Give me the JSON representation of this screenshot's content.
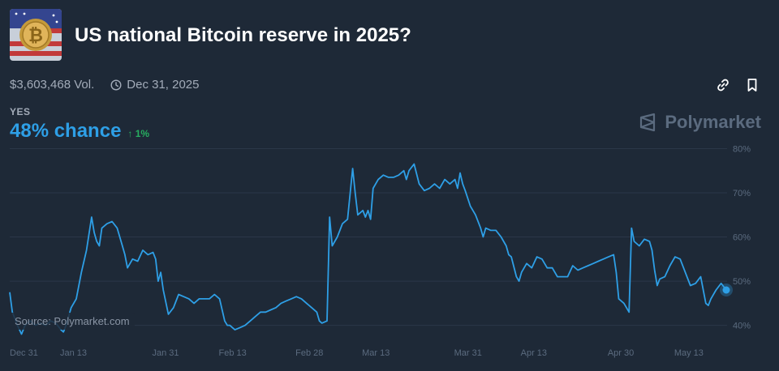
{
  "market": {
    "title": "US national Bitcoin reserve in 2025?",
    "volume": "$3,603,468 Vol.",
    "end_date": "Dec 31, 2025",
    "outcome": "YES",
    "chance": "48% chance",
    "delta": "↑ 1%",
    "brand": "Polymarket",
    "source": "Source: Polymarket.com",
    "thumbnail_icon": "bitcoin-flag-thumbnail",
    "colors": {
      "line": "#2e9fe6",
      "up": "#27ae60",
      "background": "#1e2937"
    }
  },
  "actions": [
    {
      "name": "link-icon"
    },
    {
      "name": "bookmark-icon"
    }
  ],
  "chart_data": {
    "type": "line",
    "x_tick_labels": [
      "Dec 31",
      "Jan 13",
      "Jan 31",
      "Feb 13",
      "Feb 28",
      "Mar 13",
      "Mar 31",
      "Apr 13",
      "Apr 30",
      "May 13"
    ],
    "y_tick_labels": [
      "40%",
      "50%",
      "60%",
      "70%",
      "80%"
    ],
    "ylim": [
      37,
      81
    ],
    "x_ticks_day": [
      0,
      13,
      31,
      44,
      59,
      72,
      90,
      103,
      120,
      133
    ],
    "xlim_day": [
      0,
      140
    ],
    "grid": true,
    "series": [
      {
        "points": [
          [
            0,
            47.5
          ],
          [
            0.5,
            43
          ],
          [
            1.5,
            40
          ],
          [
            2.3,
            38
          ],
          [
            3,
            40
          ],
          [
            4,
            41
          ],
          [
            5,
            40
          ],
          [
            6,
            40.5
          ],
          [
            7,
            40
          ],
          [
            8,
            41
          ],
          [
            9,
            40.5
          ],
          [
            10,
            39
          ],
          [
            10.5,
            38.5
          ],
          [
            11,
            40
          ],
          [
            12,
            44
          ],
          [
            13,
            46
          ],
          [
            14,
            52
          ],
          [
            15,
            57
          ],
          [
            16,
            64.5
          ],
          [
            16.5,
            61
          ],
          [
            17,
            59
          ],
          [
            17.5,
            58
          ],
          [
            18,
            62
          ],
          [
            19,
            63
          ],
          [
            20,
            63.5
          ],
          [
            21,
            62
          ],
          [
            22,
            58
          ],
          [
            22.5,
            56
          ],
          [
            23,
            53
          ],
          [
            24,
            55
          ],
          [
            25,
            54.5
          ],
          [
            26,
            57
          ],
          [
            27,
            56
          ],
          [
            28,
            56.5
          ],
          [
            28.5,
            55
          ],
          [
            29,
            50
          ],
          [
            29.5,
            52
          ],
          [
            30,
            48
          ],
          [
            31,
            42.5
          ],
          [
            32,
            44
          ],
          [
            33,
            47
          ],
          [
            34,
            46.5
          ],
          [
            35,
            46
          ],
          [
            36,
            45
          ],
          [
            37,
            46
          ],
          [
            38,
            46
          ],
          [
            39,
            46
          ],
          [
            40,
            47
          ],
          [
            41,
            46
          ],
          [
            42,
            41
          ],
          [
            42.5,
            40
          ],
          [
            43,
            40
          ],
          [
            43.5,
            39.5
          ],
          [
            44,
            39
          ],
          [
            45,
            39.5
          ],
          [
            46,
            40
          ],
          [
            47,
            41
          ],
          [
            48,
            42
          ],
          [
            49,
            43
          ],
          [
            50,
            43
          ],
          [
            51,
            43.5
          ],
          [
            52,
            44
          ],
          [
            53,
            45
          ],
          [
            54,
            45.5
          ],
          [
            55,
            46
          ],
          [
            56,
            46.5
          ],
          [
            57,
            46
          ],
          [
            58,
            45
          ],
          [
            59,
            44
          ],
          [
            60,
            43
          ],
          [
            60.5,
            41
          ],
          [
            61,
            40.5
          ],
          [
            62,
            41
          ],
          [
            62.5,
            64.5
          ],
          [
            63,
            58
          ],
          [
            64,
            60
          ],
          [
            65,
            63
          ],
          [
            66,
            64
          ],
          [
            67,
            75.5
          ],
          [
            67.5,
            70
          ],
          [
            68,
            65
          ],
          [
            69,
            66
          ],
          [
            69.5,
            64.5
          ],
          [
            70,
            66
          ],
          [
            70.5,
            64
          ],
          [
            71,
            71
          ],
          [
            72,
            73
          ],
          [
            73,
            74
          ],
          [
            74,
            73.5
          ],
          [
            75,
            73.5
          ],
          [
            76,
            74
          ],
          [
            77,
            75
          ],
          [
            77.5,
            73
          ],
          [
            78,
            75
          ],
          [
            79,
            76.5
          ],
          [
            80,
            72
          ],
          [
            81,
            70.5
          ],
          [
            82,
            71
          ],
          [
            83,
            72
          ],
          [
            84,
            71
          ],
          [
            85,
            73
          ],
          [
            86,
            72
          ],
          [
            87,
            73
          ],
          [
            87.5,
            71
          ],
          [
            88,
            74.5
          ],
          [
            88.5,
            72
          ],
          [
            89,
            70.5
          ],
          [
            90,
            67
          ],
          [
            91,
            65
          ],
          [
            92,
            62
          ],
          [
            92.5,
            60
          ],
          [
            93,
            62
          ],
          [
            94,
            61.5
          ],
          [
            95,
            61.5
          ],
          [
            96,
            60
          ],
          [
            97,
            58
          ],
          [
            97.5,
            56
          ],
          [
            98,
            55.5
          ],
          [
            99,
            51
          ],
          [
            99.5,
            50
          ],
          [
            100,
            52
          ],
          [
            101,
            54
          ],
          [
            102,
            53
          ],
          [
            103,
            55.5
          ],
          [
            104,
            55
          ],
          [
            105,
            53
          ],
          [
            106,
            53
          ],
          [
            107,
            51
          ],
          [
            108,
            51
          ],
          [
            109,
            51
          ],
          [
            110,
            53.5
          ],
          [
            111,
            52.5
          ],
          [
            112,
            53
          ],
          [
            113,
            53.5
          ],
          [
            114,
            54
          ],
          [
            115,
            54.5
          ],
          [
            116,
            55
          ],
          [
            117,
            55.5
          ],
          [
            118,
            56
          ],
          [
            118.5,
            52
          ],
          [
            119,
            46
          ],
          [
            120,
            45
          ],
          [
            121,
            43
          ],
          [
            121.5,
            62
          ],
          [
            122,
            59
          ],
          [
            123,
            58
          ],
          [
            124,
            59.5
          ],
          [
            125,
            59
          ],
          [
            125.5,
            57
          ],
          [
            126,
            52.5
          ],
          [
            126.5,
            49
          ],
          [
            127,
            50.5
          ],
          [
            128,
            51
          ],
          [
            129,
            53.5
          ],
          [
            130,
            55.5
          ],
          [
            131,
            55
          ],
          [
            132,
            52
          ],
          [
            133,
            49
          ],
          [
            134,
            49.5
          ],
          [
            135,
            51
          ],
          [
            136,
            45
          ],
          [
            136.5,
            44.5
          ],
          [
            137,
            46
          ],
          [
            138,
            48
          ],
          [
            139,
            49.5
          ],
          [
            140,
            48
          ]
        ]
      }
    ],
    "last_point": [
      140,
      48
    ]
  }
}
